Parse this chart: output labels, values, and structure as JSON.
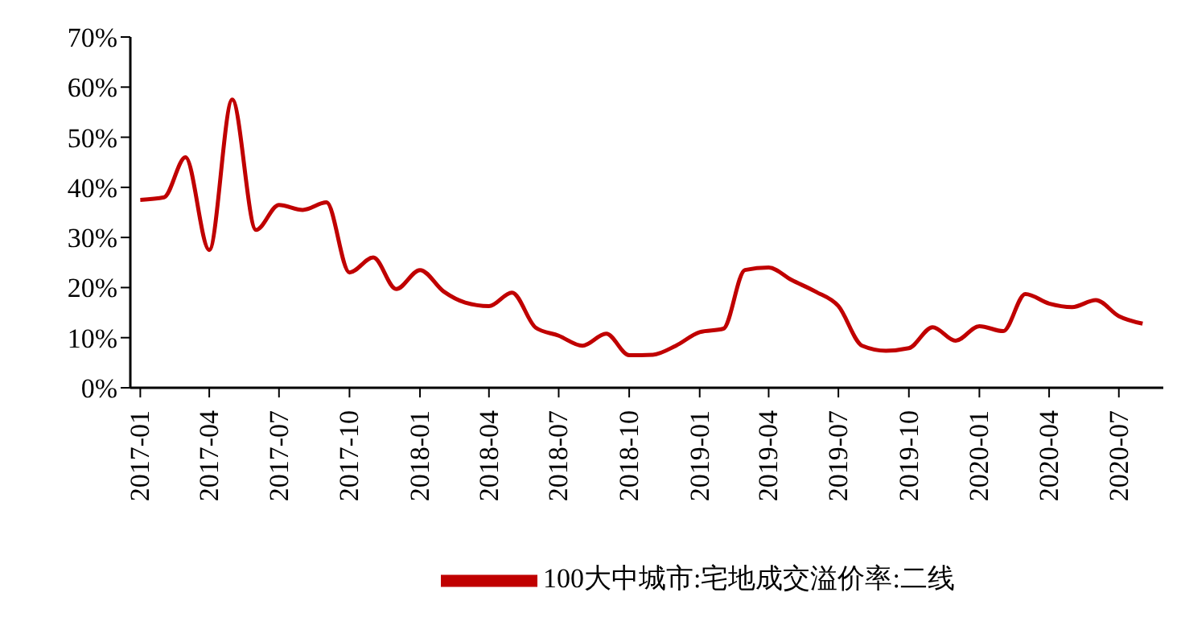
{
  "chart_data": {
    "type": "line",
    "x": [
      "2017-01",
      "2017-02",
      "2017-03",
      "2017-04",
      "2017-05",
      "2017-06",
      "2017-07",
      "2017-08",
      "2017-09",
      "2017-10",
      "2017-11",
      "2017-12",
      "2018-01",
      "2018-02",
      "2018-03",
      "2018-04",
      "2018-05",
      "2018-06",
      "2018-07",
      "2018-08",
      "2018-09",
      "2018-10",
      "2018-11",
      "2018-12",
      "2019-01",
      "2019-02",
      "2019-03",
      "2019-04",
      "2019-05",
      "2019-06",
      "2019-07",
      "2019-08",
      "2019-09",
      "2019-10",
      "2019-11",
      "2019-12",
      "2020-01",
      "2020-02",
      "2020-03",
      "2020-04",
      "2020-05",
      "2020-06",
      "2020-07",
      "2020-08"
    ],
    "series": [
      {
        "name": "100大中城市:宅地成交溢价率:二线",
        "color": "#c00000",
        "values": [
          37.5,
          38,
          46,
          27.5,
          57.5,
          31.5,
          36.5,
          35.5,
          37,
          23,
          26,
          19.7,
          23.5,
          19.2,
          17,
          16.3,
          19,
          12,
          10.4,
          8.4,
          10.8,
          6.5,
          6.6,
          8.4,
          11.1,
          11.8,
          23.5,
          24,
          21.5,
          19.2,
          16.3,
          8.4,
          7.4,
          7.9,
          12.1,
          9.4,
          12.3,
          11.3,
          18.7,
          16.8,
          16.1,
          17.5,
          14.3,
          12.8
        ]
      }
    ],
    "xlim": [
      "2016-12-19",
      "2020-08-28"
    ],
    "xticks": [
      "2017-01",
      "2017-04",
      "2017-07",
      "2017-10",
      "2018-01",
      "2018-04",
      "2018-07",
      "2018-10",
      "2019-01",
      "2019-04",
      "2019-07",
      "2019-10",
      "2020-01",
      "2020-04",
      "2020-07"
    ],
    "ylim": [
      0,
      70
    ],
    "yticks": [
      {
        "value": 0,
        "label": "0%"
      },
      {
        "value": 10,
        "label": "10%"
      },
      {
        "value": 20,
        "label": "20%"
      },
      {
        "value": 30,
        "label": "30%"
      },
      {
        "value": 40,
        "label": "40%"
      },
      {
        "value": 50,
        "label": "50%"
      },
      {
        "value": 60,
        "label": "60%"
      },
      {
        "value": 70,
        "label": "70%"
      }
    ],
    "grid": false,
    "legend": "bottom",
    "marker": "none",
    "line_style": "solid"
  }
}
